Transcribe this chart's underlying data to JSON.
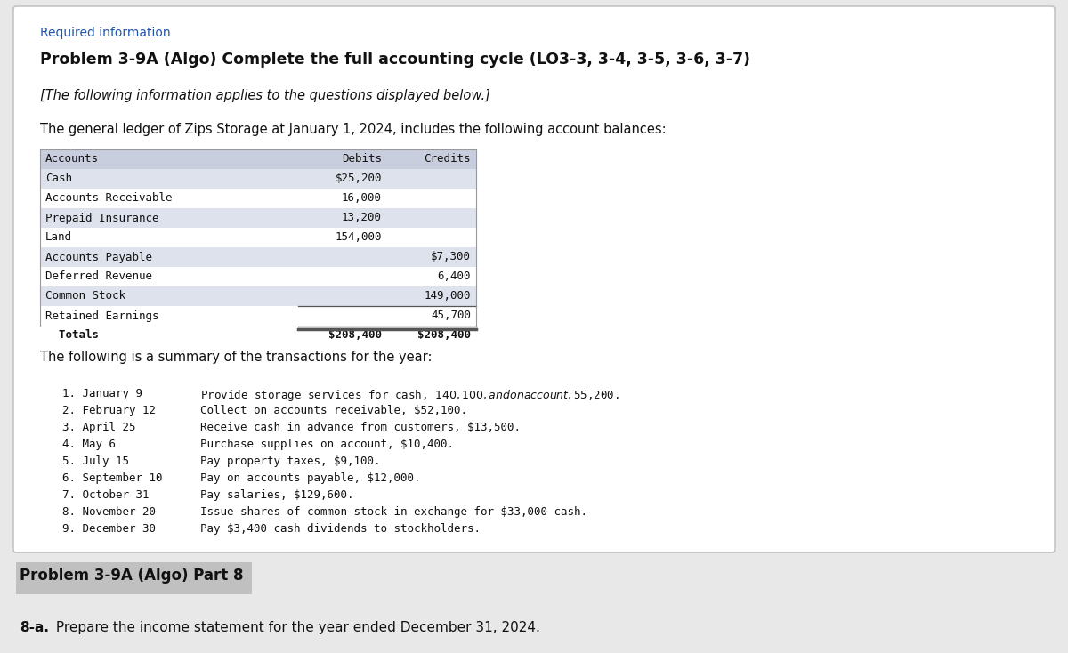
{
  "bg_color": "#e8e8e8",
  "card_color": "#ffffff",
  "required_info_color": "#2255aa",
  "required_info_text": "Required information",
  "title_bold": "Problem 3-9A (Algo) Complete the full accounting cycle (LO3-3, 3-4, 3-5, 3-6, 3-7)",
  "subtitle_italic": "[The following information applies to the questions displayed below.]",
  "intro_text": "The general ledger of Zips Storage at January 1, 2024, includes the following account balances:",
  "table_header": [
    "Accounts",
    "Debits",
    "Credits"
  ],
  "table_rows": [
    [
      "Cash",
      "$25,200",
      ""
    ],
    [
      "Accounts Receivable",
      "16,000",
      ""
    ],
    [
      "Prepaid Insurance",
      "13,200",
      ""
    ],
    [
      "Land",
      "154,000",
      ""
    ],
    [
      "Accounts Payable",
      "",
      "$7,300"
    ],
    [
      "Deferred Revenue",
      "",
      "6,400"
    ],
    [
      "Common Stock",
      "",
      "149,000"
    ],
    [
      "Retained Earnings",
      "",
      "45,700"
    ],
    [
      "  Totals",
      "$208,400",
      "$208,400"
    ]
  ],
  "table_header_bg": "#c8cede",
  "table_alt_bg": "#dde2ec",
  "table_row_bg": "#ffffff",
  "transactions_intro": "The following is a summary of the transactions for the year:",
  "transactions": [
    [
      "1. January 9",
      "Provide storage services for cash, $140,100, and on account, $55,200."
    ],
    [
      "2. February 12",
      "Collect on accounts receivable, $52,100."
    ],
    [
      "3. April 25",
      "Receive cash in advance from customers, $13,500."
    ],
    [
      "4. May 6",
      "Purchase supplies on account, $10,400."
    ],
    [
      "5. July 15",
      "Pay property taxes, $9,100."
    ],
    [
      "6. September 10",
      "Pay on accounts payable, $12,000."
    ],
    [
      "7. October 31",
      "Pay salaries, $129,600."
    ],
    [
      "8. November 20",
      "Issue shares of common stock in exchange for $33,000 cash."
    ],
    [
      "9. December 30",
      "Pay $3,400 cash dividends to stockholders."
    ]
  ],
  "part_header_bg": "#c0c0c0",
  "part_header_text": "Problem 3-9A (Algo) Part 8",
  "part_instruction_bold": "8-a.",
  "part_instruction_rest": " Prepare the income statement for the year ended December 31, 2024."
}
